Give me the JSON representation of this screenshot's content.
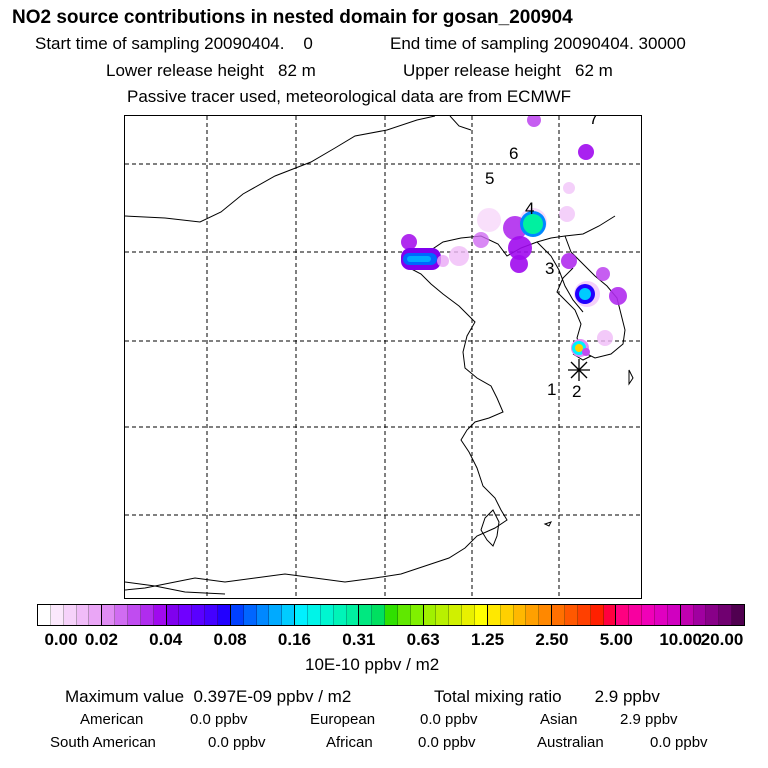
{
  "title": "NO2 source contributions in nested domain for gosan_200904",
  "header": {
    "start_label": "Start time of sampling 20090404.    0",
    "end_label": "End time of sampling 20090404. 30000",
    "lower_label": "Lower release height   82 m",
    "upper_label": "Upper release height   62 m",
    "tracer_note": "Passive tracer used, meteorological data are from ECMWF"
  },
  "map": {
    "markers": [
      "1",
      "2",
      "3",
      "4",
      "5",
      "6",
      "7"
    ],
    "receptor_symbol": "✳"
  },
  "colorbar": {
    "unit": "10E-10 ppbv / m2",
    "ticks": [
      "0.00",
      "0.02",
      "0.04",
      "0.08",
      "0.16",
      "0.31",
      "0.63",
      "1.25",
      "2.50",
      "5.00",
      "10.00",
      "20.00"
    ],
    "colors": [
      [
        "#ffffff",
        "#fbe8fc",
        "#f6d2fa",
        "#f0bcf8",
        "#eaa6f6"
      ],
      [
        "#e08cf4",
        "#d06cf2",
        "#c04cf0",
        "#b02cee",
        "#a00aee"
      ],
      [
        "#8000ee",
        "#7000ff",
        "#5a00ff",
        "#4400ff",
        "#2200ff"
      ],
      [
        "#0040ff",
        "#0066ff",
        "#0088ff",
        "#00aaff",
        "#00ccff"
      ],
      [
        "#00f0ff",
        "#00f4e8",
        "#00f6d0",
        "#00f4b8",
        "#00f0a0"
      ],
      [
        "#00e880",
        "#00e060",
        "#30e000",
        "#60e800",
        "#80f000"
      ],
      [
        "#a0f000",
        "#b8f000",
        "#d0f000",
        "#e8f000",
        "#ffff00"
      ],
      [
        "#ffe800",
        "#ffd000",
        "#ffb800",
        "#ffa000",
        "#ff8800"
      ],
      [
        "#ff7000",
        "#ff5800",
        "#ff4000",
        "#ff2000",
        "#ff0040"
      ],
      [
        "#ff0080",
        "#f800a0",
        "#f000b8",
        "#e000c0",
        "#d000c0"
      ],
      [
        "#c000b0",
        "#a000a0",
        "#880088",
        "#700070",
        "#500050"
      ]
    ]
  },
  "stats": {
    "max_value": "Maximum value  0.397E-09 ppbv / m2",
    "total_mixing": "Total mixing ratio       2.9 ppbv",
    "american_label": "American",
    "american_value": "0.0 ppbv",
    "european_label": "European",
    "european_value": "0.0 ppbv",
    "asian_label": "Asian",
    "asian_value": "2.9 ppbv",
    "south_american_label": "South American",
    "south_american_value": "0.0 ppbv",
    "african_label": "African",
    "african_value": "0.0 ppbv",
    "australian_label": "Australian",
    "australian_value": "0.0 ppbv"
  }
}
